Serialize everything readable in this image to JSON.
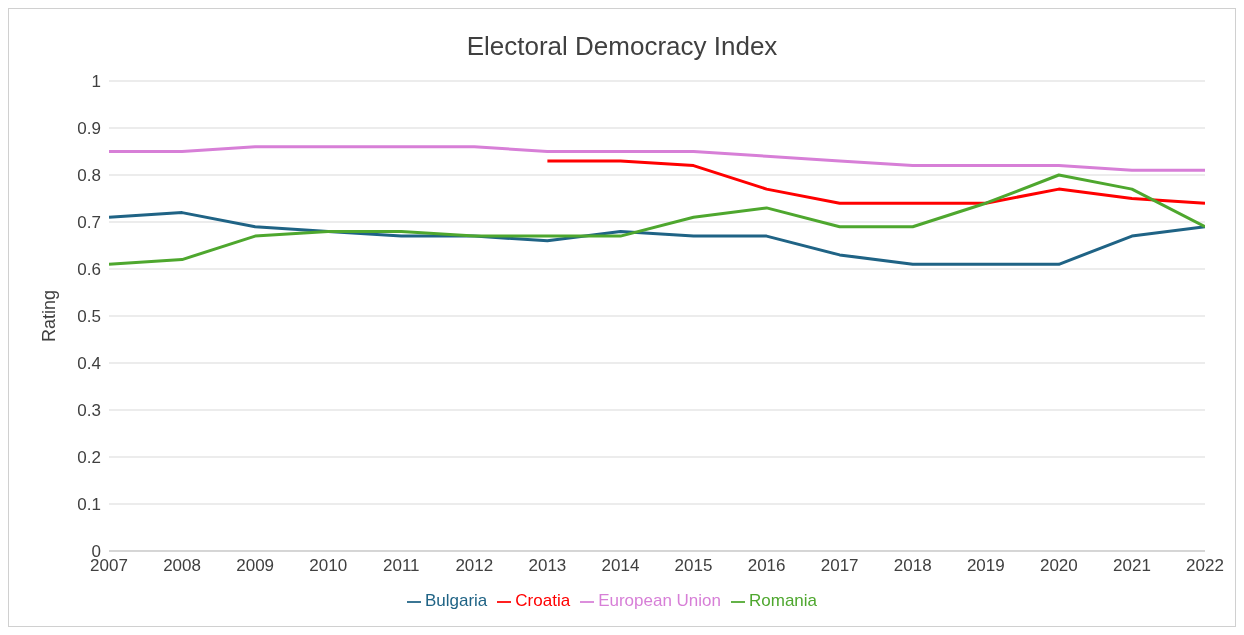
{
  "chart_data": {
    "type": "line",
    "title": "Electoral Democracy Index",
    "ylabel": "Rating",
    "x": [
      2007,
      2008,
      2009,
      2010,
      2011,
      2012,
      2013,
      2014,
      2015,
      2016,
      2017,
      2018,
      2019,
      2020,
      2021,
      2022
    ],
    "xlim": [
      2007,
      2022
    ],
    "xticks": [
      2007,
      2008,
      2009,
      2010,
      2011,
      2012,
      2013,
      2014,
      2015,
      2016,
      2017,
      2018,
      2019,
      2020,
      2021,
      2022
    ],
    "ylim": [
      0,
      1
    ],
    "yticks": [
      0,
      0.1,
      0.2,
      0.3,
      0.4,
      0.5,
      0.6,
      0.7,
      0.8,
      0.9,
      1
    ],
    "grid": "y",
    "legend": "bottom",
    "marker": "none",
    "line_style": "solid",
    "series": [
      {
        "name": "European Union",
        "color": "#d77fd7",
        "values": [
          0.85,
          0.85,
          0.86,
          0.86,
          0.86,
          0.86,
          0.85,
          0.85,
          0.85,
          0.84,
          0.83,
          0.82,
          0.82,
          0.82,
          0.81,
          0.81
        ]
      },
      {
        "name": "Bulgaria",
        "color": "#1f6385",
        "values": [
          0.71,
          0.72,
          0.69,
          0.68,
          0.67,
          0.67,
          0.66,
          0.68,
          0.67,
          0.67,
          0.63,
          0.61,
          0.61,
          0.61,
          0.67,
          0.69
        ]
      },
      {
        "name": "Croatia",
        "color": "#ff0000",
        "values": [
          null,
          null,
          null,
          null,
          null,
          null,
          0.83,
          0.83,
          0.82,
          0.77,
          0.74,
          0.74,
          0.74,
          0.77,
          0.75,
          0.74
        ]
      },
      {
        "name": "Romania",
        "color": "#4ea72e",
        "values": [
          0.61,
          0.62,
          0.67,
          0.68,
          0.68,
          0.67,
          0.67,
          0.67,
          0.71,
          0.73,
          0.69,
          0.69,
          0.74,
          0.8,
          0.77,
          0.69
        ]
      }
    ]
  }
}
